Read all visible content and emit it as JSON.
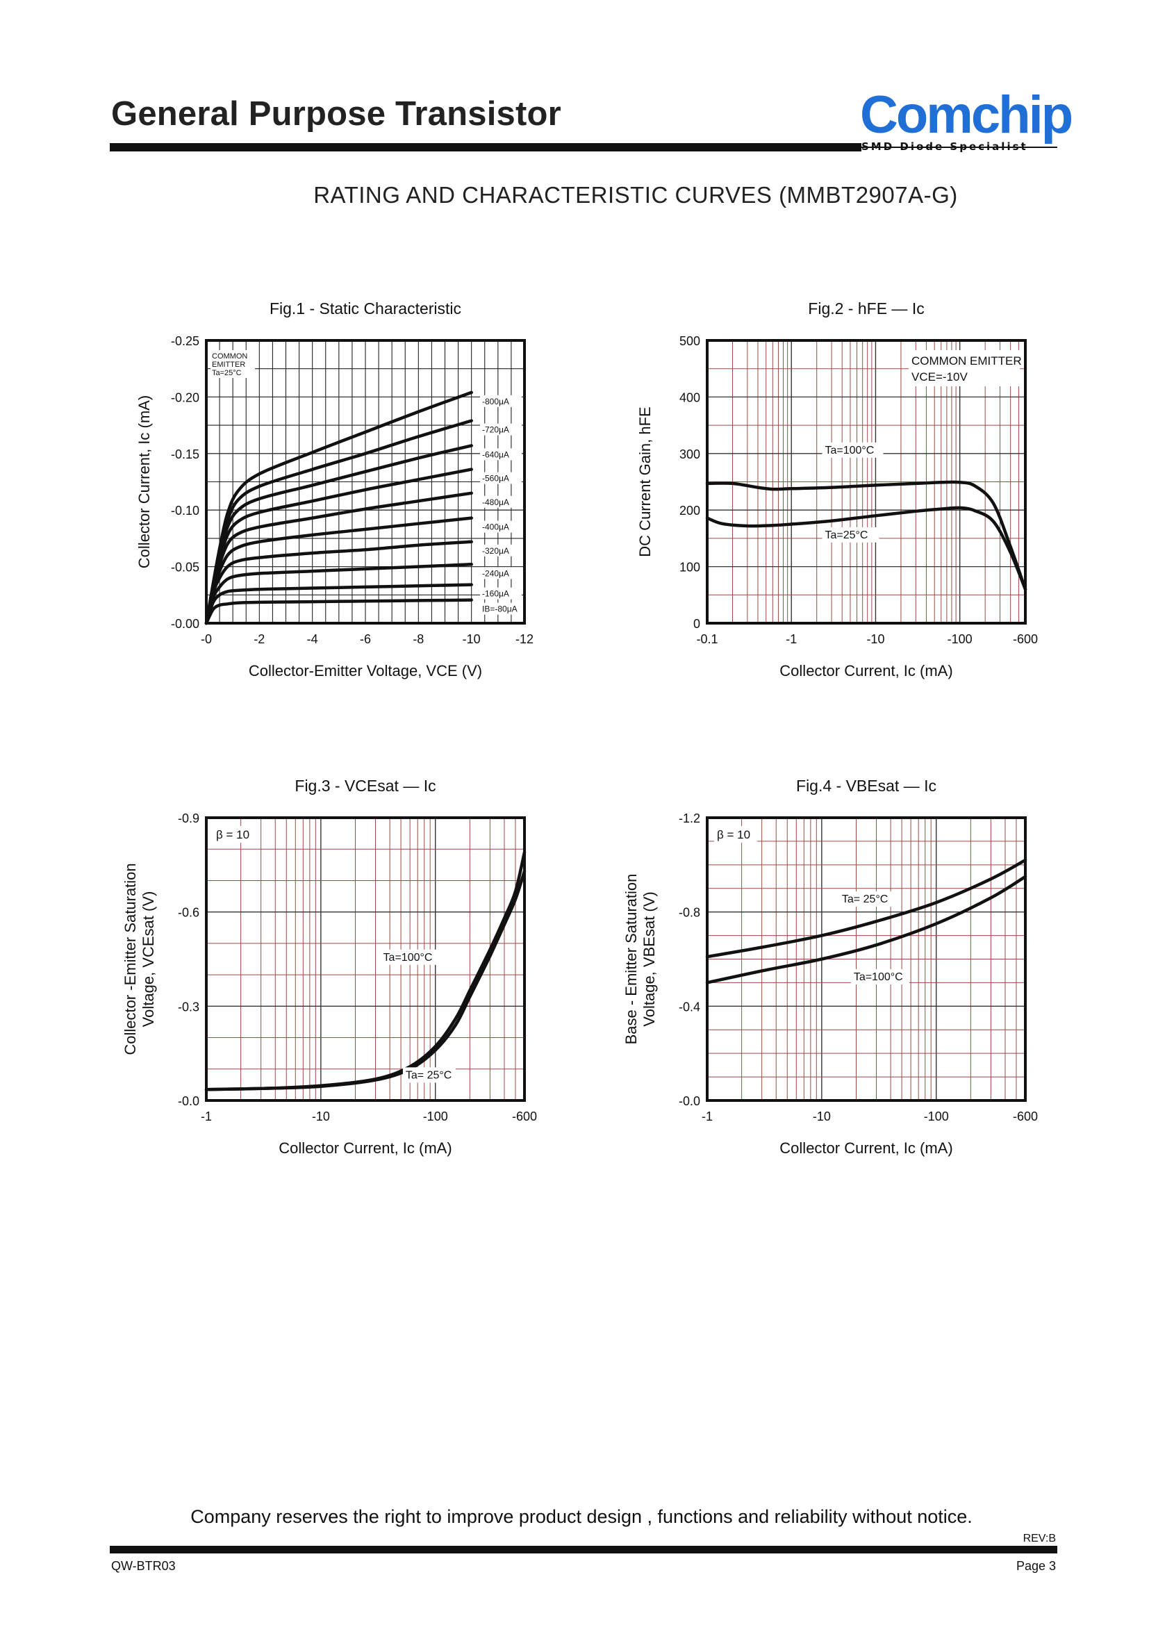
{
  "header": {
    "title": "General Purpose Transistor"
  },
  "logo": {
    "brand": "Comchip",
    "tagline": "SMD Diode Specialist"
  },
  "page_heading": "RATING AND CHARACTERISTIC CURVES (MMBT2907A-G)",
  "footer": {
    "notice": "Company reserves the right to improve product design , functions and reliability without notice.",
    "revision": "REV:B",
    "doc_code": "QW-BTR03",
    "page": "Page 3"
  },
  "chart_data": [
    {
      "type": "line",
      "title": "Fig.1 - Static Characteristic",
      "xlabel": "Collector-Emitter Voltage, VCE (V)",
      "ylabel": "Collector Current, Ic (mA)",
      "xlim": [
        0,
        -12
      ],
      "ylim": [
        0,
        -0.25
      ],
      "x_ticks": [
        "-0",
        "-2",
        "-4",
        "-6",
        "-8",
        "-10",
        "-12"
      ],
      "y_ticks": [
        "-0.00",
        "-0.05",
        "-0.10",
        "-0.15",
        "-0.20",
        "-0.25"
      ],
      "annotation": "COMMON EMITTER Ta=25°C",
      "grid": true,
      "x": [
        0,
        -0.25,
        -0.5,
        -0.8,
        -1.2,
        -2,
        -4,
        -6,
        -8,
        -10
      ],
      "series": [
        {
          "name": "IB=-80μA",
          "values": [
            0,
            -0.012,
            -0.016,
            -0.017,
            -0.018,
            -0.0185,
            -0.019,
            -0.0195,
            -0.02,
            -0.0205
          ]
        },
        {
          "name": "-160μA",
          "values": [
            0,
            -0.018,
            -0.025,
            -0.028,
            -0.029,
            -0.03,
            -0.031,
            -0.032,
            -0.033,
            -0.034
          ]
        },
        {
          "name": "-240μA",
          "values": [
            0,
            -0.022,
            -0.032,
            -0.039,
            -0.042,
            -0.044,
            -0.046,
            -0.048,
            -0.05,
            -0.052
          ]
        },
        {
          "name": "-320μA",
          "values": [
            0,
            -0.026,
            -0.04,
            -0.05,
            -0.055,
            -0.058,
            -0.062,
            -0.065,
            -0.069,
            -0.072
          ]
        },
        {
          "name": "-400μA",
          "values": [
            0,
            -0.028,
            -0.046,
            -0.06,
            -0.067,
            -0.072,
            -0.078,
            -0.083,
            -0.088,
            -0.093
          ]
        },
        {
          "name": "-480μA",
          "values": [
            0,
            -0.03,
            -0.052,
            -0.07,
            -0.079,
            -0.085,
            -0.093,
            -0.101,
            -0.108,
            -0.115
          ]
        },
        {
          "name": "-560μA",
          "values": [
            0,
            -0.031,
            -0.056,
            -0.078,
            -0.09,
            -0.098,
            -0.108,
            -0.118,
            -0.127,
            -0.136
          ]
        },
        {
          "name": "-640μA",
          "values": [
            0,
            -0.032,
            -0.06,
            -0.085,
            -0.1,
            -0.11,
            -0.122,
            -0.134,
            -0.146,
            -0.157
          ]
        },
        {
          "name": "-720μA",
          "values": [
            0,
            -0.033,
            -0.063,
            -0.091,
            -0.109,
            -0.121,
            -0.136,
            -0.15,
            -0.165,
            -0.179
          ]
        },
        {
          "name": "-800μA",
          "values": [
            0,
            -0.034,
            -0.066,
            -0.097,
            -0.117,
            -0.132,
            -0.151,
            -0.169,
            -0.187,
            -0.204
          ]
        }
      ]
    },
    {
      "type": "line",
      "title": "Fig.2 - hFE — Ic",
      "xlabel": "Collector Current, Ic (mA)",
      "ylabel": "DC Current Gain, hFE",
      "xscale": "log",
      "xlim": [
        -0.1,
        -600
      ],
      "ylim": [
        0,
        500
      ],
      "x_ticks": [
        "-0.1",
        "-1",
        "-10",
        "-100",
        "-600"
      ],
      "y_ticks": [
        "0",
        "100",
        "200",
        "300",
        "400",
        "500"
      ],
      "annotation": "COMMON EMITTER VCE=-10V",
      "grid": true,
      "series": [
        {
          "name": "Ta=100°C",
          "x": [
            0.1,
            0.2,
            0.4,
            0.6,
            1,
            3,
            10,
            30,
            60,
            100,
            150,
            250,
            400,
            600
          ],
          "values": [
            247,
            247,
            240,
            237,
            238,
            240,
            244,
            247,
            249,
            249,
            243,
            212,
            135,
            60
          ]
        },
        {
          "name": "Ta=25°C",
          "x": [
            0.1,
            0.15,
            0.3,
            0.6,
            1,
            3,
            10,
            30,
            60,
            100,
            150,
            250,
            400,
            600
          ],
          "values": [
            186,
            176,
            172,
            173,
            175,
            181,
            190,
            198,
            202,
            204,
            199,
            180,
            125,
            60
          ]
        }
      ]
    },
    {
      "type": "line",
      "title": "Fig.3 - VCEsat — Ic",
      "xlabel": "Collector Current, Ic (mA)",
      "ylabel_lines": [
        "Collector -Emitter Saturation",
        "Voltage, VCEsat (V)"
      ],
      "xscale": "log",
      "xlim": [
        -1,
        -600
      ],
      "ylim": [
        0,
        -0.9
      ],
      "x_ticks": [
        "-1",
        "-10",
        "-100",
        "-600"
      ],
      "y_ticks": [
        "-0.0",
        "-0.3",
        "-0.6",
        "-0.9"
      ],
      "annotation": "β = 10",
      "grid": true,
      "series": [
        {
          "name": "Ta=100°C",
          "x": [
            1,
            3,
            10,
            30,
            60,
            100,
            150,
            200,
            300,
            400,
            500,
            600
          ],
          "values": [
            -0.035,
            -0.038,
            -0.045,
            -0.065,
            -0.1,
            -0.16,
            -0.24,
            -0.33,
            -0.46,
            -0.56,
            -0.64,
            -0.73
          ]
        },
        {
          "name": "Ta= 25°C",
          "x": [
            1,
            3,
            10,
            30,
            60,
            100,
            150,
            200,
            300,
            400,
            500,
            600
          ],
          "values": [
            -0.035,
            -0.038,
            -0.047,
            -0.068,
            -0.108,
            -0.172,
            -0.26,
            -0.35,
            -0.48,
            -0.58,
            -0.665,
            -0.79
          ]
        }
      ]
    },
    {
      "type": "line",
      "title": "Fig.4 - VBEsat — Ic",
      "xlabel": "Collector Current, Ic (mA)",
      "ylabel_lines": [
        "Base - Emitter Saturation",
        "Voltage, VBEsat (V)"
      ],
      "xscale": "log",
      "xlim": [
        -1,
        -600
      ],
      "ylim": [
        0,
        -1.2
      ],
      "x_ticks": [
        "-1",
        "-10",
        "-100",
        "-600"
      ],
      "y_ticks": [
        "-0.0",
        "-0.4",
        "-0.8",
        "-1.2"
      ],
      "annotation": "β = 10",
      "grid": true,
      "series": [
        {
          "name": "Ta= 25°C",
          "x": [
            1,
            3,
            10,
            30,
            100,
            300,
            600
          ],
          "values": [
            -0.61,
            -0.65,
            -0.7,
            -0.76,
            -0.84,
            -0.94,
            -1.02
          ]
        },
        {
          "name": "Ta=100°C",
          "x": [
            1,
            3,
            10,
            30,
            100,
            300,
            600
          ],
          "values": [
            -0.5,
            -0.55,
            -0.6,
            -0.66,
            -0.75,
            -0.86,
            -0.95
          ]
        }
      ]
    }
  ]
}
